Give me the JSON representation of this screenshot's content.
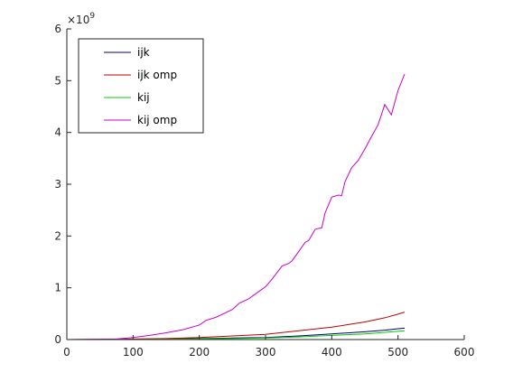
{
  "chart_data": {
    "type": "line",
    "title": "",
    "xlabel": "",
    "ylabel": "",
    "xlim": [
      0,
      600
    ],
    "ylim": [
      0,
      6000000000
    ],
    "xticks": [
      0,
      100,
      200,
      300,
      400,
      500,
      600
    ],
    "yticks": [
      0,
      1,
      2,
      3,
      4,
      5,
      6
    ],
    "y_exponent_label": "×10",
    "y_exponent_power": "9",
    "grid": false,
    "legend_placement": "top-left",
    "series": [
      {
        "name": "ijk",
        "color": "#00007f",
        "x": [
          0,
          100,
          150,
          200,
          250,
          300,
          350,
          400,
          450,
          480,
          500,
          510
        ],
        "y": [
          0,
          5000000,
          10000000,
          20000000,
          30000000,
          40000000,
          70000000,
          110000000,
          150000000,
          180000000,
          210000000,
          220000000
        ]
      },
      {
        "name": "ijk omp",
        "color": "#bf0000",
        "x": [
          0,
          100,
          150,
          200,
          250,
          300,
          350,
          400,
          450,
          480,
          500,
          510
        ],
        "y": [
          0,
          10000000,
          20000000,
          40000000,
          70000000,
          100000000,
          170000000,
          240000000,
          340000000,
          420000000,
          490000000,
          530000000
        ]
      },
      {
        "name": "kij",
        "color": "#00cc00",
        "x": [
          0,
          100,
          150,
          200,
          250,
          300,
          350,
          400,
          450,
          480,
          500,
          510
        ],
        "y": [
          0,
          3000000,
          7000000,
          12000000,
          20000000,
          30000000,
          50000000,
          80000000,
          110000000,
          140000000,
          160000000,
          170000000
        ]
      },
      {
        "name": "kij omp",
        "color": "#cc00cc",
        "x": [
          0,
          50,
          75,
          100,
          125,
          150,
          175,
          200,
          210,
          225,
          240,
          250,
          260,
          275,
          290,
          300,
          310,
          325,
          335,
          340,
          350,
          360,
          365,
          375,
          385,
          390,
          400,
          410,
          415,
          420,
          430,
          440,
          450,
          460,
          470,
          480,
          490,
          500,
          510
        ],
        "y": [
          0,
          5000000,
          10000000,
          40000000,
          80000000,
          130000000,
          190000000,
          280000000,
          370000000,
          430000000,
          520000000,
          580000000,
          700000000,
          790000000,
          930000000,
          1020000000,
          1170000000,
          1420000000,
          1470000000,
          1520000000,
          1700000000,
          1880000000,
          1910000000,
          2130000000,
          2160000000,
          2450000000,
          2750000000,
          2790000000,
          2780000000,
          3050000000,
          3320000000,
          3460000000,
          3680000000,
          3920000000,
          4150000000,
          4540000000,
          4340000000,
          4810000000,
          5130000000
        ]
      }
    ]
  }
}
